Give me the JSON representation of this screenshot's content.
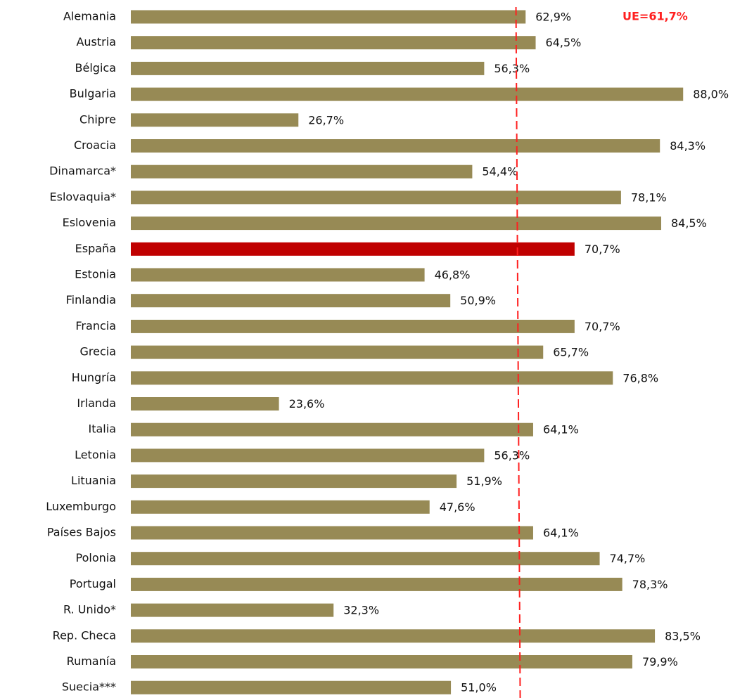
{
  "chart_data": {
    "type": "hbar",
    "categories": [
      "Alemania",
      "Austria",
      "Bélgica",
      "Bulgaria",
      "Chipre",
      "Croacia",
      "Dinamarca*",
      "Eslovaquia*",
      "Eslovenia",
      "España",
      "Estonia",
      "Finlandia",
      "Francia",
      "Grecia",
      "Hungría",
      "Irlanda",
      "Italia",
      "Letonia",
      "Lituania",
      "Luxemburgo",
      "Países Bajos",
      "Polonia",
      "Portugal",
      "R. Unido*",
      "Rep. Checa",
      "Rumanía",
      "Suecia***"
    ],
    "values": [
      62.9,
      64.5,
      56.3,
      88.0,
      26.7,
      84.3,
      54.4,
      78.1,
      84.5,
      70.7,
      46.8,
      50.9,
      70.7,
      65.7,
      76.8,
      23.6,
      64.1,
      56.3,
      51.9,
      47.6,
      64.1,
      74.7,
      78.3,
      32.3,
      83.5,
      79.9,
      51.0
    ],
    "value_labels": [
      "62,9%",
      "64,5%",
      "56,3%",
      "88,0%",
      "26,7%",
      "84,3%",
      "54,4%",
      "78,1%",
      "84,5%",
      "70,7%",
      "46,8%",
      "50,9%",
      "70,7%",
      "65,7%",
      "76,8%",
      "23,6%",
      "64,1%",
      "56,3%",
      "51,9%",
      "47,6%",
      "64,1%",
      "74,7%",
      "78,3%",
      "32,3%",
      "83,5%",
      "79,9%",
      "51,0%"
    ],
    "colors": [
      "#978a55",
      "#978a55",
      "#978a55",
      "#978a55",
      "#978a55",
      "#978a55",
      "#978a55",
      "#978a55",
      "#978a55",
      "#c00000",
      "#978a55",
      "#978a55",
      "#978a55",
      "#978a55",
      "#978a55",
      "#978a55",
      "#978a55",
      "#978a55",
      "#978a55",
      "#978a55",
      "#978a55",
      "#978a55",
      "#978a55",
      "#978a55",
      "#978a55",
      "#978a55",
      "#978a55"
    ],
    "reference_line": {
      "value": 61.7,
      "label": "UE=61,7%",
      "color": "#ff2020"
    }
  }
}
